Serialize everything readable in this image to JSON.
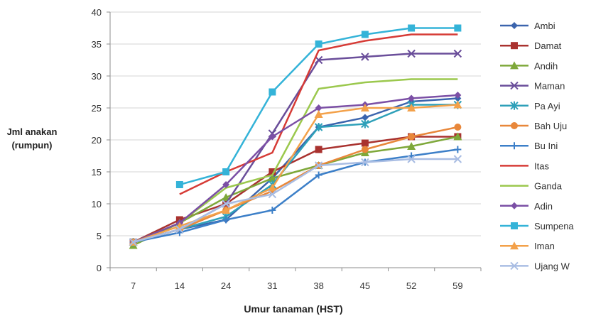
{
  "chart_data": {
    "type": "line",
    "title": "",
    "xlabel": "Umur tanaman (HST)",
    "ylabel_lines": [
      "Jml anakan",
      "(rumpun)"
    ],
    "categories": [
      "7",
      "14",
      "24",
      "31",
      "38",
      "45",
      "52",
      "59"
    ],
    "ylim": [
      0,
      40
    ],
    "yticks": [
      0,
      5,
      10,
      15,
      20,
      25,
      30,
      35,
      40
    ],
    "grid": "horizontal",
    "legend_position": "right",
    "series": [
      {
        "name": "Ambi",
        "color": "#3b64ad",
        "marker": "diamond",
        "values": [
          4,
          6,
          7.5,
          14,
          22,
          23.5,
          26,
          26.5
        ]
      },
      {
        "name": "Damat",
        "color": "#a9322f",
        "marker": "square",
        "values": [
          4,
          7.5,
          10,
          15,
          18.5,
          19.5,
          20.5,
          20.5
        ]
      },
      {
        "name": "Andih",
        "color": "#7ea83a",
        "marker": "triangle",
        "values": [
          3.5,
          7,
          11,
          14,
          16,
          18,
          19,
          20.5
        ]
      },
      {
        "name": "Maman",
        "color": "#6a4e9a",
        "marker": "x",
        "values": [
          4,
          6,
          10,
          21,
          32.5,
          33,
          33.5,
          33.5
        ]
      },
      {
        "name": "Pa Ayi",
        "color": "#2ea0b9",
        "marker": "star",
        "values": [
          4,
          6,
          8,
          13,
          22,
          22.5,
          25.5,
          25.5
        ]
      },
      {
        "name": "Bah Uju",
        "color": "#e8873a",
        "marker": "circle",
        "values": [
          4,
          6,
          9,
          12,
          16,
          18.5,
          20.5,
          22
        ]
      },
      {
        "name": "Bu Ini",
        "color": "#3c7fc8",
        "marker": "plus",
        "values": [
          4,
          5.5,
          7.5,
          9,
          14.5,
          16.5,
          17.5,
          18.5
        ]
      },
      {
        "name": "Itas",
        "color": "#d63b36",
        "marker": "none",
        "values": [
          null,
          11.5,
          15,
          18,
          34,
          35.5,
          36.5,
          36.5
        ]
      },
      {
        "name": "Ganda",
        "color": "#9bc84d",
        "marker": "none",
        "values": [
          4,
          7,
          12.5,
          14.5,
          28,
          29,
          29.5,
          29.5
        ]
      },
      {
        "name": "Adin",
        "color": "#7b4fa5",
        "marker": "diamond",
        "values": [
          4,
          7,
          13,
          20.5,
          25,
          25.5,
          26.5,
          27
        ]
      },
      {
        "name": "Sumpena",
        "color": "#34b3d8",
        "marker": "square",
        "values": [
          null,
          13,
          15,
          27.5,
          35,
          36.5,
          37.5,
          37.5
        ]
      },
      {
        "name": "Iman",
        "color": "#f3a14a",
        "marker": "triangle",
        "values": [
          4,
          6.5,
          9,
          12.5,
          24,
          25,
          25,
          25.5
        ]
      },
      {
        "name": "Ujang W",
        "color": "#a9bde3",
        "marker": "x",
        "values": [
          4,
          6,
          10,
          11.5,
          16,
          16.5,
          17,
          17
        ]
      }
    ]
  }
}
